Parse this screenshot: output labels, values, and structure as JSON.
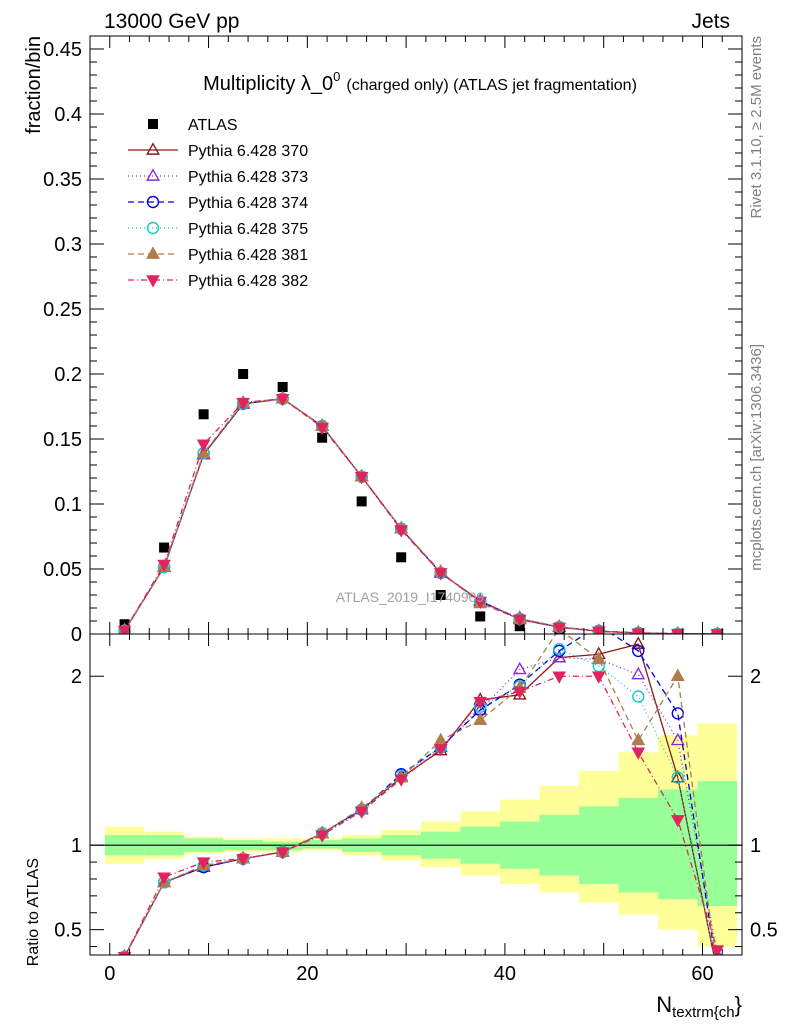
{
  "header": {
    "energy": "13000 GeV pp",
    "category": "Jets"
  },
  "side_labels": {
    "rivet": "Rivet 3.1.10, ≥ 2.5M events",
    "mcplots": "mcplots.cern.ch [arXiv:1306.3436]"
  },
  "watermark": "ATLAS_2019_I1740909",
  "chart_data": [
    {
      "type": "scatter",
      "panel": "main",
      "title": "Multiplicity λ_0",
      "title_superscript": "0",
      "title_suffix": "(charged only) (ATLAS jet fragmentation)",
      "ylabel": "fraction/bin",
      "xlabel": "N",
      "xlabel_subscript": "textrm{ch",
      "xlabel_suffix": "}",
      "xlim": [
        -2,
        64
      ],
      "ylim": [
        0,
        0.46
      ],
      "yticks": [
        0,
        0.05,
        0.1,
        0.15,
        0.2,
        0.25,
        0.3,
        0.35,
        0.4,
        0.45
      ],
      "ytick_labels": [
        "0",
        "0.05",
        "0.1",
        "0.15",
        "0.2",
        "0.25",
        "0.3",
        "0.35",
        "0.4",
        "0.45"
      ],
      "legend_position": "top-left",
      "x": [
        1.5,
        5.5,
        9.5,
        13.5,
        17.5,
        21.5,
        25.5,
        29.5,
        33.5,
        37.5,
        41.5,
        45.5,
        49.5,
        53.5,
        57.5,
        61.5
      ],
      "series": [
        {
          "name": "ATLAS",
          "color": "#000000",
          "marker": "filled-square",
          "values": [
            0.0075,
            0.0665,
            0.169,
            0.2,
            0.19,
            0.151,
            0.102,
            0.059,
            0.03,
            0.0135,
            0.006,
            0.0025,
            0.001,
            0.0004,
            0.0001,
            3e-05
          ]
        },
        {
          "name": "Pythia 6.428 370",
          "color": "#8b1a1a",
          "marker": "open-triangle-up",
          "dash": "solid",
          "values": [
            0.0026,
            0.0515,
            0.138,
            0.177,
            0.181,
            0.16,
            0.121,
            0.081,
            0.047,
            0.0255,
            0.0112,
            0.0053,
            0.0021,
            0.0009,
            0.00014,
            8e-06
          ]
        },
        {
          "name": "Pythia 6.428 373",
          "color": "#8a2be2",
          "marker": "open-triangle-up",
          "dash": "1,3",
          "values": [
            0.0026,
            0.0515,
            0.138,
            0.177,
            0.181,
            0.16,
            0.121,
            0.081,
            0.047,
            0.025,
            0.0123,
            0.0052,
            0.0022,
            0.0008,
            0.00013,
            1.1e-05
          ]
        },
        {
          "name": "Pythia 6.428 374",
          "color": "#0000dd",
          "marker": "open-circle",
          "dash": "6,4",
          "values": [
            0.0026,
            0.0515,
            0.139,
            0.177,
            0.181,
            0.16,
            0.121,
            0.081,
            0.047,
            0.025,
            0.0117,
            0.0053,
            0.0023,
            0.00085,
            0.00017,
            8e-06
          ]
        },
        {
          "name": "Pythia 6.428 375",
          "color": "#11cccc",
          "marker": "open-circle",
          "dash": "1,3",
          "values": [
            0.0026,
            0.0515,
            0.139,
            0.177,
            0.181,
            0.16,
            0.121,
            0.081,
            0.047,
            0.025,
            0.0116,
            0.0053,
            0.0021,
            0.00075,
            0.00013,
            4e-06
          ]
        },
        {
          "name": "Pythia 6.428 381",
          "color": "#b07c4a",
          "marker": "filled-triangle-up",
          "dash": "6,4",
          "values": [
            0.0026,
            0.0515,
            0.139,
            0.178,
            0.181,
            0.16,
            0.121,
            0.081,
            0.048,
            0.0235,
            0.0116,
            0.0057,
            0.0021,
            0.00065,
            0.0002,
            8e-06
          ]
        },
        {
          "name": "Pythia 6.428 382",
          "color": "#e0245e",
          "marker": "filled-triangle-down",
          "dash": "6,3,1,3",
          "values": [
            0.0026,
            0.0535,
            0.146,
            0.178,
            0.181,
            0.159,
            0.121,
            0.08,
            0.047,
            0.025,
            0.0113,
            0.005,
            0.002,
            0.0006,
            0.00012,
            8e-06
          ]
        }
      ]
    },
    {
      "type": "line",
      "panel": "ratio",
      "ylabel": "Ratio to ATLAS",
      "ylim": [
        0.35,
        2.25
      ],
      "yticks": [
        0.5,
        1,
        2
      ],
      "ytick_labels": [
        "0.5",
        "1",
        "2"
      ],
      "xlim": [
        -2,
        64
      ],
      "xticks": [
        0,
        20,
        40,
        60
      ],
      "xtick_labels": [
        "0",
        "20",
        "40",
        "60"
      ],
      "reference_line": 1,
      "band_edges": [
        -0.5,
        3.5,
        7.5,
        11.5,
        15.5,
        19.5,
        23.5,
        27.5,
        31.5,
        35.5,
        39.5,
        43.5,
        47.5,
        51.5,
        55.5,
        59.5,
        63.5
      ],
      "band_stat_lo": [
        0.94,
        0.94,
        0.96,
        0.97,
        0.97,
        0.98,
        0.96,
        0.94,
        0.92,
        0.89,
        0.86,
        0.82,
        0.77,
        0.72,
        0.68,
        0.64
      ],
      "band_stat_hi": [
        1.06,
        1.06,
        1.04,
        1.03,
        1.02,
        1.03,
        1.04,
        1.06,
        1.08,
        1.11,
        1.14,
        1.18,
        1.23,
        1.28,
        1.33,
        1.38
      ],
      "band_total_lo": [
        0.89,
        0.92,
        0.95,
        0.96,
        0.96,
        0.97,
        0.94,
        0.91,
        0.87,
        0.82,
        0.77,
        0.72,
        0.66,
        0.59,
        0.5,
        0.4
      ],
      "band_total_hi": [
        1.11,
        1.08,
        1.05,
        1.04,
        1.04,
        1.04,
        1.06,
        1.09,
        1.14,
        1.2,
        1.27,
        1.35,
        1.44,
        1.55,
        1.65,
        1.72
      ],
      "x": [
        1.5,
        5.5,
        9.5,
        13.5,
        17.5,
        21.5,
        25.5,
        29.5,
        33.5,
        37.5,
        41.5,
        45.5,
        49.5,
        53.5,
        57.5,
        61.5
      ],
      "series": [
        {
          "name": "Pythia 6.428 370",
          "values": [
            0.34,
            0.78,
            0.87,
            0.92,
            0.96,
            1.07,
            1.21,
            1.4,
            1.56,
            1.86,
            1.89,
            2.11,
            2.13,
            2.19,
            1.4,
            0.25
          ]
        },
        {
          "name": "Pythia 6.428 373",
          "values": [
            0.34,
            0.78,
            0.87,
            0.92,
            0.96,
            1.07,
            1.21,
            1.41,
            1.58,
            1.8,
            2.04,
            2.11,
            2.1,
            2.01,
            1.62,
            0.35
          ]
        },
        {
          "name": "Pythia 6.428 374",
          "values": [
            0.34,
            0.78,
            0.87,
            0.92,
            0.96,
            1.07,
            1.21,
            1.42,
            1.58,
            1.8,
            1.95,
            2.15,
            2.3,
            2.15,
            1.78,
            0.25
          ]
        },
        {
          "name": "Pythia 6.428 375",
          "values": [
            0.34,
            0.78,
            0.88,
            0.92,
            0.96,
            1.07,
            1.21,
            1.41,
            1.58,
            1.82,
            1.94,
            2.16,
            2.06,
            1.88,
            1.4,
            0.25
          ]
        },
        {
          "name": "Pythia 6.428 381",
          "values": [
            0.34,
            0.78,
            0.88,
            0.92,
            0.96,
            1.07,
            1.22,
            1.4,
            1.62,
            1.74,
            1.93,
            2.28,
            2.1,
            1.62,
            2.0,
            0.25
          ]
        },
        {
          "name": "Pythia 6.428 382",
          "values": [
            0.34,
            0.81,
            0.9,
            0.92,
            0.96,
            1.06,
            1.2,
            1.39,
            1.57,
            1.85,
            1.91,
            2.0,
            2.0,
            1.55,
            1.15,
            0.38
          ]
        }
      ]
    }
  ]
}
